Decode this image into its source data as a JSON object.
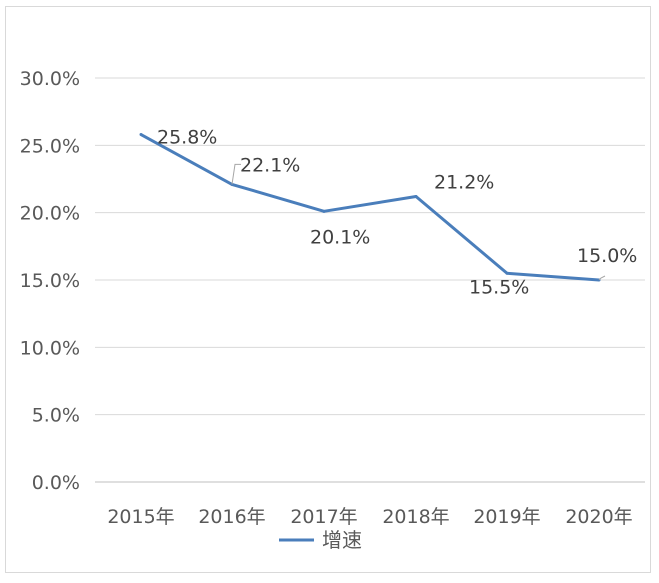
{
  "chart_data": {
    "type": "line",
    "title": "",
    "xlabel": "",
    "ylabel": "",
    "categories": [
      "2015年",
      "2016年",
      "2017年",
      "2018年",
      "2019年",
      "2020年"
    ],
    "series": [
      {
        "name": "增速",
        "values": [
          25.8,
          22.1,
          20.1,
          21.2,
          15.5,
          15.0
        ],
        "labels": [
          "25.8%",
          "22.1%",
          "20.1%",
          "21.2%",
          "15.5%",
          "15.0%"
        ],
        "color": "#4a7ebb"
      }
    ],
    "ylim": [
      0,
      30
    ],
    "yticks": [
      "0.0%",
      "5.0%",
      "10.0%",
      "15.0%",
      "20.0%",
      "25.0%",
      "30.0%"
    ],
    "grid": true,
    "legend_position": "bottom"
  }
}
